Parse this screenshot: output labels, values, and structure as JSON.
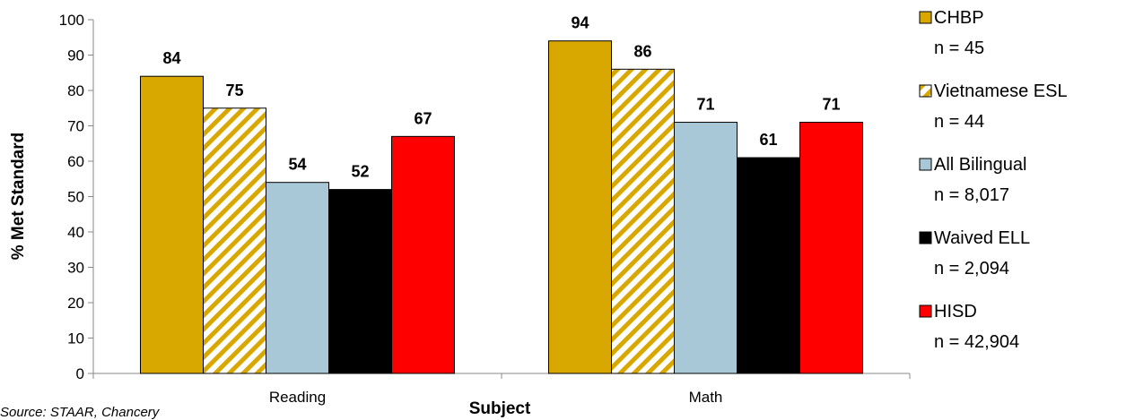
{
  "chart_data": {
    "type": "bar",
    "categories": [
      "Reading",
      "Math"
    ],
    "series": [
      {
        "name": "CHBP",
        "n_label": "n = 45",
        "color": "#D9A800",
        "pattern": "solid",
        "values": [
          84,
          94
        ]
      },
      {
        "name": "Vietnamese ESL",
        "n_label": "n = 44",
        "color": "#D9A800",
        "pattern": "diagonal-stripes",
        "values": [
          75,
          86
        ]
      },
      {
        "name": "All Bilingual",
        "n_label": "n = 8,017",
        "color": "#A8C8D8",
        "pattern": "solid",
        "values": [
          54,
          71
        ]
      },
      {
        "name": "Waived ELL",
        "n_label": "n = 2,094",
        "color": "#000000",
        "pattern": "solid",
        "values": [
          52,
          61
        ]
      },
      {
        "name": "HISD",
        "n_label": "n = 42,904",
        "color": "#FF0000",
        "pattern": "solid",
        "values": [
          67,
          71
        ]
      }
    ],
    "xlabel": "Subject",
    "ylabel": "% Met Standard",
    "ylim": [
      0,
      100
    ],
    "yticks": [
      "0",
      "10",
      "20",
      "30",
      "40",
      "50",
      "60",
      "70",
      "80",
      "90",
      "100"
    ],
    "grid": false,
    "legend_position": "right"
  },
  "source_note": "Source: STAAR, Chancery"
}
